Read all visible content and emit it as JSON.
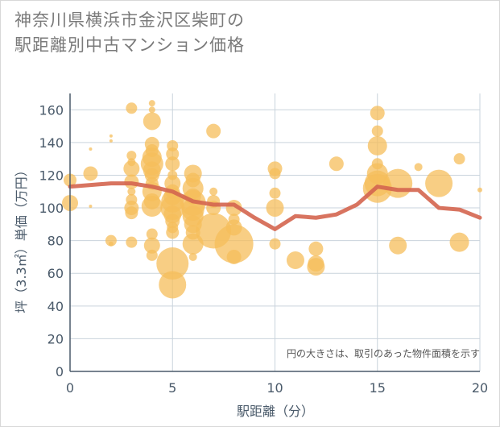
{
  "chart_data": {
    "type": "scatter",
    "title_lines": [
      "神奈川県横浜市金沢区柴町の",
      "駅距離別中古マンション価格"
    ],
    "xlabel": "駅距離（分）",
    "ylabel": "坪（3.3㎡）単価（万円）",
    "xlim": [
      0,
      20
    ],
    "ylim": [
      0,
      170
    ],
    "x_ticks": [
      0,
      5,
      10,
      15,
      20
    ],
    "y_ticks": [
      0,
      20,
      40,
      60,
      80,
      100,
      120,
      140,
      160
    ],
    "grid": true,
    "note": "円の大きさは、取引のあった物件面積を示す",
    "colors": {
      "bubble": "#f5bd5b",
      "line": "#d4654f",
      "axis": "#4a5a6a",
      "grid": "#c9d3dc"
    },
    "bubbles": [
      {
        "x": 0,
        "y": 117,
        "s": 8
      },
      {
        "x": 0,
        "y": 103,
        "s": 10
      },
      {
        "x": 1,
        "y": 121,
        "s": 9
      },
      {
        "x": 1,
        "y": 136,
        "s": 2
      },
      {
        "x": 1,
        "y": 101,
        "s": 2
      },
      {
        "x": 2,
        "y": 144,
        "s": 2
      },
      {
        "x": 2,
        "y": 141,
        "s": 2
      },
      {
        "x": 2,
        "y": 80,
        "s": 7
      },
      {
        "x": 2,
        "y": 78,
        "s": 3
      },
      {
        "x": 3,
        "y": 161,
        "s": 7
      },
      {
        "x": 3,
        "y": 132,
        "s": 6
      },
      {
        "x": 3,
        "y": 128,
        "s": 5
      },
      {
        "x": 3,
        "y": 124,
        "s": 10
      },
      {
        "x": 3,
        "y": 116,
        "s": 9
      },
      {
        "x": 3,
        "y": 110,
        "s": 5
      },
      {
        "x": 3,
        "y": 105,
        "s": 7
      },
      {
        "x": 3,
        "y": 100,
        "s": 9
      },
      {
        "x": 3,
        "y": 97,
        "s": 8
      },
      {
        "x": 3,
        "y": 79,
        "s": 7
      },
      {
        "x": 4,
        "y": 164,
        "s": 4
      },
      {
        "x": 4,
        "y": 160,
        "s": 4
      },
      {
        "x": 4,
        "y": 153,
        "s": 11
      },
      {
        "x": 4,
        "y": 139,
        "s": 9
      },
      {
        "x": 4,
        "y": 135,
        "s": 8
      },
      {
        "x": 4,
        "y": 131,
        "s": 12
      },
      {
        "x": 4,
        "y": 127,
        "s": 14
      },
      {
        "x": 4,
        "y": 123,
        "s": 11
      },
      {
        "x": 4,
        "y": 120,
        "s": 9
      },
      {
        "x": 4,
        "y": 115,
        "s": 8
      },
      {
        "x": 4,
        "y": 110,
        "s": 12
      },
      {
        "x": 4,
        "y": 104,
        "s": 10
      },
      {
        "x": 4,
        "y": 101,
        "s": 13
      },
      {
        "x": 4,
        "y": 84,
        "s": 7
      },
      {
        "x": 4,
        "y": 77,
        "s": 10
      },
      {
        "x": 4,
        "y": 71,
        "s": 7
      },
      {
        "x": 5,
        "y": 138,
        "s": 7
      },
      {
        "x": 5,
        "y": 133,
        "s": 8
      },
      {
        "x": 5,
        "y": 127,
        "s": 9
      },
      {
        "x": 5,
        "y": 120,
        "s": 6
      },
      {
        "x": 5,
        "y": 115,
        "s": 10
      },
      {
        "x": 5,
        "y": 110,
        "s": 9
      },
      {
        "x": 5,
        "y": 107,
        "s": 11
      },
      {
        "x": 5,
        "y": 104,
        "s": 14
      },
      {
        "x": 5,
        "y": 100,
        "s": 15
      },
      {
        "x": 5,
        "y": 96,
        "s": 11
      },
      {
        "x": 5,
        "y": 92,
        "s": 9
      },
      {
        "x": 5,
        "y": 88,
        "s": 7
      },
      {
        "x": 5,
        "y": 85,
        "s": 8
      },
      {
        "x": 5,
        "y": 66,
        "s": 20
      },
      {
        "x": 5,
        "y": 53,
        "s": 17
      },
      {
        "x": 6,
        "y": 121,
        "s": 11
      },
      {
        "x": 6,
        "y": 117,
        "s": 9
      },
      {
        "x": 6,
        "y": 112,
        "s": 13
      },
      {
        "x": 6,
        "y": 107,
        "s": 10
      },
      {
        "x": 6,
        "y": 103,
        "s": 16
      },
      {
        "x": 6,
        "y": 99,
        "s": 14
      },
      {
        "x": 6,
        "y": 95,
        "s": 13
      },
      {
        "x": 6,
        "y": 90,
        "s": 11
      },
      {
        "x": 6,
        "y": 85,
        "s": 9
      },
      {
        "x": 6,
        "y": 78,
        "s": 13
      },
      {
        "x": 6,
        "y": 70,
        "s": 5
      },
      {
        "x": 7,
        "y": 147,
        "s": 9
      },
      {
        "x": 7,
        "y": 110,
        "s": 5
      },
      {
        "x": 7,
        "y": 104,
        "s": 8
      },
      {
        "x": 7,
        "y": 100,
        "s": 9
      },
      {
        "x": 7,
        "y": 86,
        "s": 22
      },
      {
        "x": 8,
        "y": 100,
        "s": 10
      },
      {
        "x": 8,
        "y": 93,
        "s": 7
      },
      {
        "x": 8,
        "y": 88,
        "s": 10
      },
      {
        "x": 8,
        "y": 78,
        "s": 24
      },
      {
        "x": 8,
        "y": 70,
        "s": 9
      },
      {
        "x": 10,
        "y": 124,
        "s": 9
      },
      {
        "x": 10,
        "y": 121,
        "s": 7
      },
      {
        "x": 10,
        "y": 109,
        "s": 7
      },
      {
        "x": 10,
        "y": 100,
        "s": 11
      },
      {
        "x": 10,
        "y": 78,
        "s": 7
      },
      {
        "x": 11,
        "y": 68,
        "s": 11
      },
      {
        "x": 12,
        "y": 75,
        "s": 9
      },
      {
        "x": 12,
        "y": 66,
        "s": 10
      },
      {
        "x": 12,
        "y": 64,
        "s": 11
      },
      {
        "x": 13,
        "y": 127,
        "s": 9
      },
      {
        "x": 15,
        "y": 158,
        "s": 9
      },
      {
        "x": 15,
        "y": 147,
        "s": 7
      },
      {
        "x": 15,
        "y": 138,
        "s": 12
      },
      {
        "x": 15,
        "y": 127,
        "s": 7
      },
      {
        "x": 15,
        "y": 121,
        "s": 13
      },
      {
        "x": 15,
        "y": 115,
        "s": 16
      },
      {
        "x": 15,
        "y": 112,
        "s": 18
      },
      {
        "x": 16,
        "y": 115,
        "s": 18
      },
      {
        "x": 16,
        "y": 77,
        "s": 11
      },
      {
        "x": 17,
        "y": 125,
        "s": 5
      },
      {
        "x": 18,
        "y": 115,
        "s": 17
      },
      {
        "x": 19,
        "y": 130,
        "s": 7
      },
      {
        "x": 19,
        "y": 79,
        "s": 12
      },
      {
        "x": 20,
        "y": 111,
        "s": 3
      }
    ],
    "series": [
      {
        "x": [
          0,
          1,
          2,
          3,
          4,
          5,
          6,
          7,
          8,
          9,
          10,
          11,
          12,
          13,
          14,
          15,
          16,
          17,
          18,
          19,
          20
        ],
        "y": [
          113,
          114,
          115,
          115,
          113,
          110,
          104,
          102,
          102,
          94,
          87,
          95,
          94,
          96,
          102,
          113,
          111,
          111,
          100,
          99,
          94
        ]
      }
    ]
  }
}
